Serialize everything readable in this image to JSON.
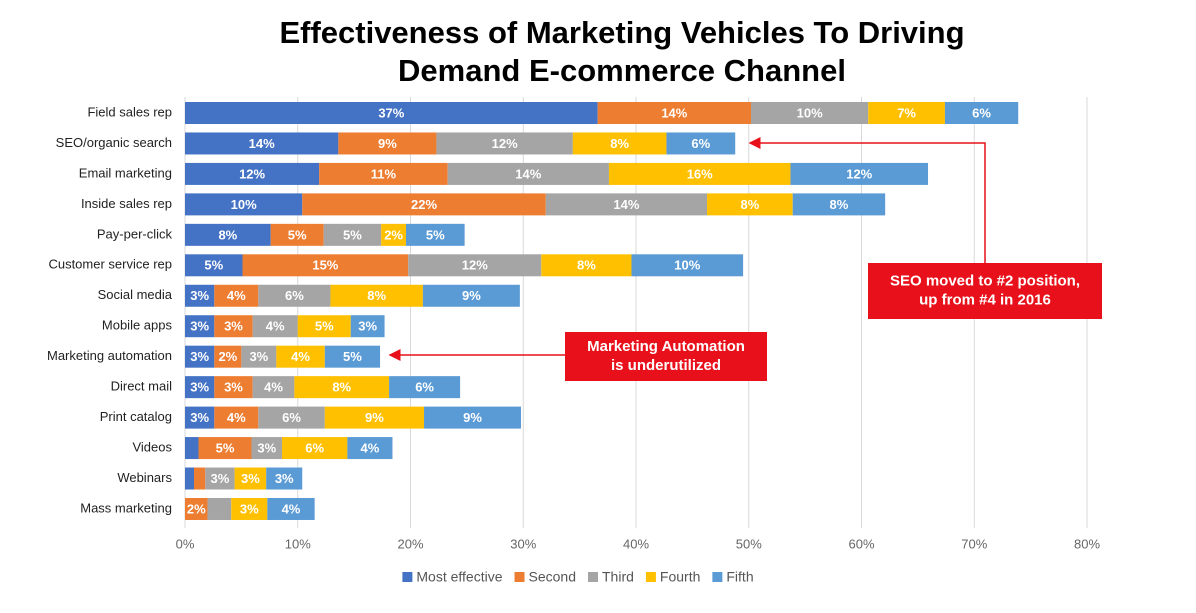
{
  "chart_data": {
    "type": "stacked-bar-horizontal",
    "title_lines": [
      "Effectiveness of Marketing Vehicles To Driving",
      "Demand E-commerce Channel"
    ],
    "categories": [
      "Field sales rep",
      "SEO/organic search",
      "Email marketing",
      "Inside sales rep",
      "Pay-per-click",
      "Customer service rep",
      "Social media",
      "Mobile apps",
      "Marketing automation",
      "Direct mail",
      "Print catalog",
      "Videos",
      "Webinars",
      "Mass marketing"
    ],
    "series": [
      {
        "name": "Most effective",
        "color": "#4472c4",
        "values": [
          36.6,
          13.6,
          11.9,
          10.4,
          7.6,
          5.1,
          2.6,
          2.6,
          2.6,
          2.6,
          2.6,
          1.2,
          0.8,
          0
        ],
        "value_labels": [
          "37%",
          "14%",
          "12%",
          "10%",
          "8%",
          "5%",
          "3%",
          "3%",
          "3%",
          "3%",
          "3%",
          null,
          null,
          null
        ]
      },
      {
        "name": "Second",
        "color": "#ed7d31",
        "values": [
          13.6,
          8.7,
          11.4,
          21.6,
          4.7,
          14.7,
          3.9,
          3.4,
          2.4,
          3.4,
          3.9,
          4.7,
          1.0,
          2.0
        ],
        "value_labels": [
          "14%",
          "9%",
          "11%",
          "22%",
          "5%",
          "15%",
          "4%",
          "3%",
          "2%",
          "3%",
          "4%",
          "5%",
          null,
          "2%"
        ]
      },
      {
        "name": "Third",
        "color": "#a5a5a5",
        "values": [
          10.4,
          12.1,
          14.3,
          14.3,
          5.1,
          11.8,
          6.4,
          4.0,
          3.1,
          3.7,
          5.9,
          2.7,
          2.6,
          2.1
        ],
        "value_labels": [
          "10%",
          "12%",
          "14%",
          "14%",
          "5%",
          "12%",
          "6%",
          "4%",
          "3%",
          "4%",
          "6%",
          "3%",
          "3%",
          null
        ]
      },
      {
        "name": "Fourth",
        "color": "#ffc000",
        "values": [
          6.8,
          8.3,
          16.1,
          7.6,
          2.2,
          8.0,
          8.2,
          4.7,
          4.3,
          8.4,
          8.8,
          5.8,
          2.8,
          3.2
        ],
        "value_labels": [
          "7%",
          "8%",
          "16%",
          "8%",
          "2%",
          "8%",
          "8%",
          "5%",
          "4%",
          "8%",
          "9%",
          "6%",
          "3%",
          "3%"
        ]
      },
      {
        "name": "Fifth",
        "color": "#5b9bd5",
        "values": [
          6.5,
          6.1,
          12.2,
          8.2,
          5.2,
          9.9,
          8.6,
          3.0,
          4.9,
          6.3,
          8.6,
          4.0,
          3.2,
          4.2
        ],
        "value_labels": [
          "6%",
          "6%",
          "12%",
          "8%",
          "5%",
          "10%",
          "9%",
          "3%",
          "5%",
          "6%",
          "9%",
          "4%",
          "3%",
          "4%"
        ]
      }
    ],
    "xlim": [
      0,
      80
    ],
    "xticks": [
      {
        "value": 0,
        "label": "0%"
      },
      {
        "value": 10,
        "label": "10%"
      },
      {
        "value": 20,
        "label": "20%"
      },
      {
        "value": 30,
        "label": "30%"
      },
      {
        "value": 40,
        "label": "40%"
      },
      {
        "value": 50,
        "label": "50%"
      },
      {
        "value": 60,
        "label": "60%"
      },
      {
        "value": 70,
        "label": "70%"
      },
      {
        "value": 80,
        "label": "80%"
      }
    ],
    "grid": true,
    "legend": "bottom",
    "annotations": [
      {
        "lines": [
          "SEO moved to #2 position,",
          "up from #4 in 2016"
        ],
        "color": "#e8101a"
      },
      {
        "lines": [
          "Marketing Automation",
          "is underutilized"
        ],
        "color": "#e8101a"
      }
    ]
  }
}
